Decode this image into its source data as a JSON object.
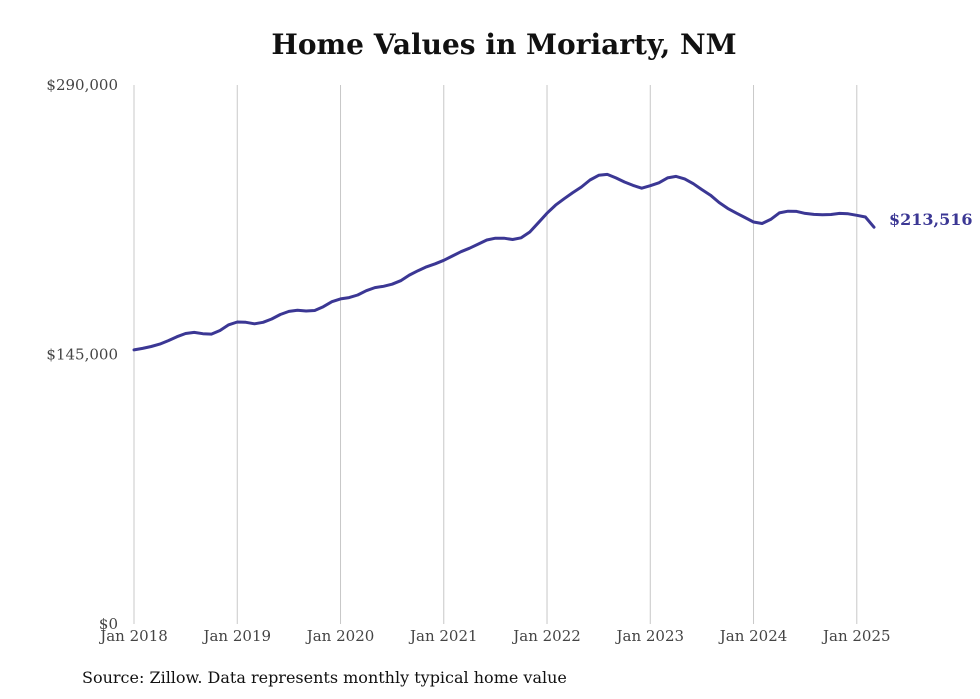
{
  "chart_data": {
    "type": "line",
    "title": "Home Values in Moriarty, NM",
    "xlabel": "",
    "ylabel": "",
    "ylim": [
      0,
      290000
    ],
    "y_ticks": [
      {
        "value": 0,
        "label": "$0"
      },
      {
        "value": 145000,
        "label": "$145,000"
      },
      {
        "value": 290000,
        "label": "$290,000"
      }
    ],
    "x_ticks": [
      {
        "value": "2018-01",
        "label": "Jan 2018"
      },
      {
        "value": "2019-01",
        "label": "Jan 2019"
      },
      {
        "value": "2020-01",
        "label": "Jan 2020"
      },
      {
        "value": "2021-01",
        "label": "Jan 2021"
      },
      {
        "value": "2022-01",
        "label": "Jan 2022"
      },
      {
        "value": "2023-01",
        "label": "Jan 2023"
      },
      {
        "value": "2024-01",
        "label": "Jan 2024"
      },
      {
        "value": "2025-01",
        "label": "Jan 2025"
      }
    ],
    "grid": {
      "vertical": true,
      "horizontal": false
    },
    "line_color": "#3b3794",
    "grid_color": "#c8c8c8",
    "end_label": "$213,516",
    "series": [
      {
        "x": [
          "2018-01",
          "2018-02",
          "2018-03",
          "2018-04",
          "2018-05",
          "2018-06",
          "2018-07",
          "2018-08",
          "2018-09",
          "2018-10",
          "2018-11",
          "2018-12",
          "2019-01",
          "2019-02",
          "2019-03",
          "2019-04",
          "2019-05",
          "2019-06",
          "2019-07",
          "2019-08",
          "2019-09",
          "2019-10",
          "2019-11",
          "2019-12",
          "2020-01",
          "2020-02",
          "2020-03",
          "2020-04",
          "2020-05",
          "2020-06",
          "2020-07",
          "2020-08",
          "2020-09",
          "2020-10",
          "2020-11",
          "2020-12",
          "2021-01",
          "2021-02",
          "2021-03",
          "2021-04",
          "2021-05",
          "2021-06",
          "2021-07",
          "2021-08",
          "2021-09",
          "2021-10",
          "2021-11",
          "2021-12",
          "2022-01",
          "2022-02",
          "2022-03",
          "2022-04",
          "2022-05",
          "2022-06",
          "2022-07",
          "2022-08",
          "2022-09",
          "2022-10",
          "2022-11",
          "2022-12",
          "2023-01",
          "2023-02",
          "2023-03",
          "2023-04",
          "2023-05",
          "2023-06",
          "2023-07",
          "2023-08",
          "2023-09",
          "2023-10",
          "2023-11",
          "2023-12",
          "2024-01",
          "2024-02",
          "2024-03",
          "2024-04",
          "2024-05",
          "2024-06",
          "2024-07",
          "2024-08",
          "2024-09",
          "2024-10",
          "2024-11",
          "2024-12",
          "2025-01",
          "2025-02",
          "2025-03"
        ],
        "values": [
          147500,
          148300,
          149300,
          150600,
          152500,
          154600,
          156300,
          156900,
          156200,
          156000,
          157900,
          161000,
          162500,
          162300,
          161500,
          162300,
          164100,
          166500,
          168200,
          168800,
          168400,
          168700,
          170700,
          173400,
          174900,
          175600,
          177000,
          179300,
          181000,
          181700,
          182800,
          184700,
          187700,
          190100,
          192200,
          193800,
          195700,
          198000,
          200300,
          202200,
          204400,
          206600,
          207600,
          207600,
          206900,
          207800,
          210900,
          215900,
          221000,
          225400,
          228800,
          232100,
          235100,
          238900,
          241400,
          241900,
          240000,
          237800,
          236000,
          234500,
          235800,
          237400,
          240000,
          240800,
          239500,
          236900,
          233700,
          230700,
          226800,
          223600,
          221100,
          218700,
          216300,
          215500,
          217700,
          221200,
          222100,
          222000,
          220900,
          220400,
          220200,
          220300,
          220900,
          220700,
          219900,
          219000,
          213516
        ]
      }
    ]
  },
  "source_note": "Source: Zillow. Data represents monthly typical home value"
}
